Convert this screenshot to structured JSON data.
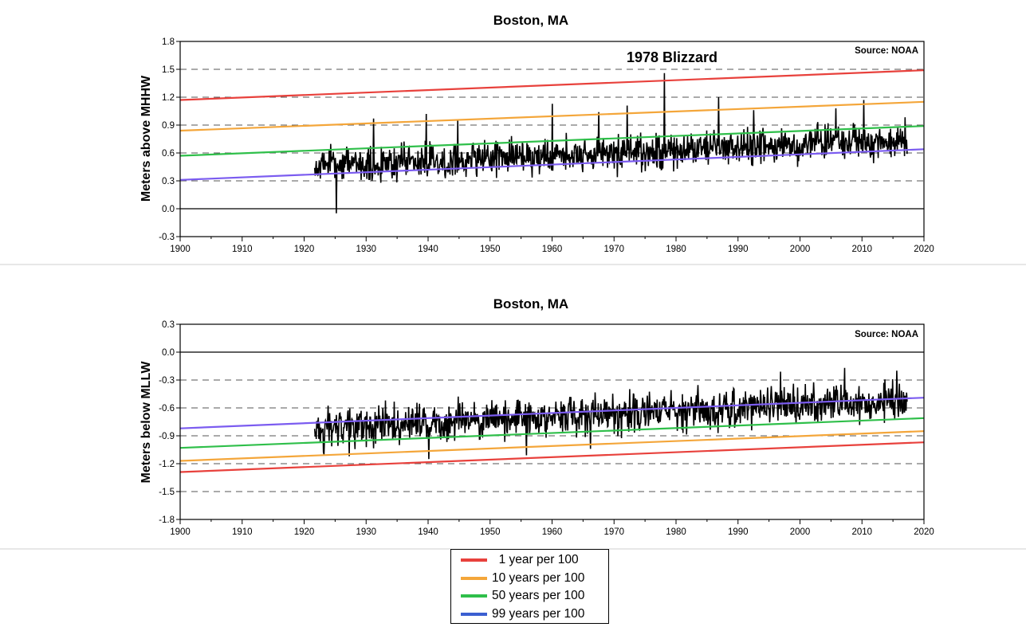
{
  "chart_data": [
    {
      "type": "line",
      "title": "Boston, MA",
      "ylabel": "Meters above MHHW",
      "xlabel": "",
      "source": "Source: NOAA",
      "annotation": {
        "text": "1978 Blizzard",
        "x": 1978,
        "y": 1.46
      },
      "xlim": [
        1900,
        2020
      ],
      "ylim": [
        -0.3,
        1.8
      ],
      "xticks": [
        1900,
        1910,
        1920,
        1930,
        1940,
        1950,
        1960,
        1970,
        1980,
        1990,
        2000,
        2010,
        2020
      ],
      "yticks": [
        -0.3,
        0.0,
        0.3,
        0.6,
        0.9,
        1.2,
        1.5,
        1.8
      ],
      "ytick_labels": [
        "-0.3",
        "0.0",
        "0.3",
        "0.6",
        "0.9",
        "1.2",
        "1.5",
        "1.8"
      ],
      "dashed_gridlines_y": [
        0.3,
        0.6,
        0.9,
        1.2,
        1.5
      ],
      "solid_zero_line": 0.0,
      "trend_lines": [
        {
          "legend_ref": 0,
          "color": "#e8413c",
          "x": [
            1900,
            2020
          ],
          "y": [
            1.17,
            1.49
          ]
        },
        {
          "legend_ref": 1,
          "color": "#f4a63a",
          "x": [
            1900,
            2020
          ],
          "y": [
            0.84,
            1.15
          ]
        },
        {
          "legend_ref": 2,
          "color": "#2fbf4a",
          "x": [
            1900,
            2020
          ],
          "y": [
            0.57,
            0.89
          ]
        },
        {
          "legend_ref": 3,
          "color": "#7b5cf0",
          "x": [
            1900,
            2020
          ],
          "y": [
            0.31,
            0.64
          ]
        }
      ],
      "monthly_series": {
        "color": "#000000",
        "x_start": 1921.7,
        "x_end": 2017.3,
        "approx_baseline_y": [
          0.38,
          0.66
        ],
        "approx_noise_range": [
          -0.2,
          0.35
        ],
        "notable_peaks": [
          {
            "x": 1925.2,
            "y": -0.05
          },
          {
            "x": 1931.2,
            "y": 0.97
          },
          {
            "x": 1939.7,
            "y": 1.02
          },
          {
            "x": 1944.8,
            "y": 0.96
          },
          {
            "x": 1960.0,
            "y": 1.13
          },
          {
            "x": 1967.5,
            "y": 1.04
          },
          {
            "x": 1972.1,
            "y": 1.11
          },
          {
            "x": 1978.1,
            "y": 1.46
          },
          {
            "x": 1986.9,
            "y": 1.2
          },
          {
            "x": 1992.5,
            "y": 1.06
          },
          {
            "x": 2005.8,
            "y": 1.08
          },
          {
            "x": 2010.3,
            "y": 1.17
          }
        ]
      }
    },
    {
      "type": "line",
      "title": "Boston, MA",
      "ylabel": "Meters below MLLW",
      "xlabel": "",
      "source": "Source: NOAA",
      "xlim": [
        1900,
        2020
      ],
      "ylim": [
        -1.8,
        0.3
      ],
      "xticks": [
        1900,
        1910,
        1920,
        1930,
        1940,
        1950,
        1960,
        1970,
        1980,
        1990,
        2000,
        2010,
        2020
      ],
      "yticks": [
        -1.8,
        -1.5,
        -1.2,
        -0.9,
        -0.6,
        -0.3,
        0.0,
        0.3
      ],
      "ytick_labels": [
        "-1.8",
        "-1.5",
        "-1.2",
        "-0.9",
        "-0.6",
        "-0.3",
        "0.0",
        "0.3"
      ],
      "dashed_gridlines_y": [
        -1.5,
        -1.2,
        -0.9,
        -0.6,
        -0.3
      ],
      "solid_zero_line": 0.0,
      "trend_lines": [
        {
          "legend_ref": 0,
          "color": "#e8413c",
          "x": [
            1900,
            2020
          ],
          "y": [
            -1.29,
            -0.97
          ]
        },
        {
          "legend_ref": 1,
          "color": "#f4a63a",
          "x": [
            1900,
            2020
          ],
          "y": [
            -1.17,
            -0.85
          ]
        },
        {
          "legend_ref": 2,
          "color": "#2fbf4a",
          "x": [
            1900,
            2020
          ],
          "y": [
            -1.03,
            -0.71
          ]
        },
        {
          "legend_ref": 3,
          "color": "#7b5cf0",
          "x": [
            1900,
            2020
          ],
          "y": [
            -0.82,
            -0.49
          ]
        }
      ],
      "monthly_series": {
        "color": "#000000",
        "x_start": 1921.7,
        "x_end": 2017.3,
        "approx_baseline_y": [
          -0.76,
          -0.47
        ],
        "approx_noise_range": [
          -0.35,
          0.25
        ],
        "notable_peaks": [
          {
            "x": 1923.2,
            "y": -1.1
          },
          {
            "x": 1927.3,
            "y": -1.12
          },
          {
            "x": 1940.1,
            "y": -1.15
          },
          {
            "x": 1955.9,
            "y": -1.11
          },
          {
            "x": 1966.2,
            "y": -1.04
          },
          {
            "x": 1996.9,
            "y": -0.21
          },
          {
            "x": 2007.2,
            "y": -0.17
          },
          {
            "x": 2015.6,
            "y": -0.2
          }
        ]
      }
    }
  ],
  "legend": {
    "items": [
      {
        "label": "  1 year per 100",
        "color": "#e8413c"
      },
      {
        "label": "10 years per 100",
        "color": "#f4a63a"
      },
      {
        "label": "50 years per 100",
        "color": "#2fbf4a"
      },
      {
        "label": "99 years per 100",
        "color": "#3b5fd1"
      }
    ]
  }
}
